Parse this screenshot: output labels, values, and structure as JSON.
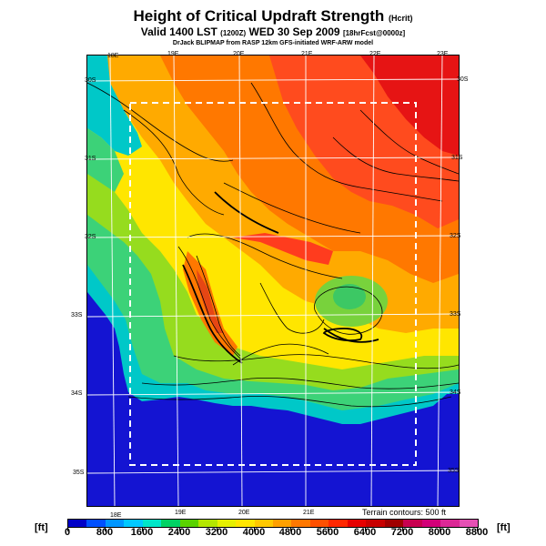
{
  "header": {
    "title": "Height of Critical Updraft Strength",
    "title_tag": "(Hcrit)",
    "subtitle": "Valid 1400 LST",
    "subtitle_time": "(1200Z)",
    "subtitle_date": "WED 30 Sep 2009",
    "subtitle_fcst": "[18hrFcst@0000z]",
    "credit": "DrJack BLIPMAP from RASP 12km GFS-initiated WRF-ARW model"
  },
  "map": {
    "lon_top": [
      "18E",
      "19E",
      "20E",
      "21E",
      "22E",
      "23E"
    ],
    "lon_bottom": [
      "18E",
      "19E",
      "20E",
      "21E"
    ],
    "lat_left": [
      "30S",
      "31S",
      "32S",
      "33S",
      "34S",
      "35S"
    ],
    "lat_right": [
      "30S",
      "31S",
      "32S",
      "33S",
      "34S",
      "35S"
    ],
    "terrain_note": "Terrain contours: 500 ft",
    "boundary_style": "white dashed rectangle"
  },
  "colorbar": {
    "unit_left": "[ft]",
    "unit_right": "[ft]",
    "labels": [
      "0",
      "800",
      "1600",
      "2400",
      "3200",
      "4000",
      "4800",
      "5600",
      "6400",
      "7200",
      "8000",
      "8800"
    ],
    "colors": [
      "#0000c8",
      "#0050ff",
      "#0096ff",
      "#00c8ff",
      "#00e6c8",
      "#00d264",
      "#5ad200",
      "#b4e600",
      "#e6f000",
      "#ffe600",
      "#ffc800",
      "#ffa000",
      "#ff7800",
      "#ff5000",
      "#ff2800",
      "#e60000",
      "#c80000",
      "#a00000",
      "#c80050",
      "#d20078",
      "#dc2896",
      "#e650b4"
    ]
  },
  "colors": {
    "ocean": "#1414d2",
    "accent_high": "#e6281e"
  }
}
